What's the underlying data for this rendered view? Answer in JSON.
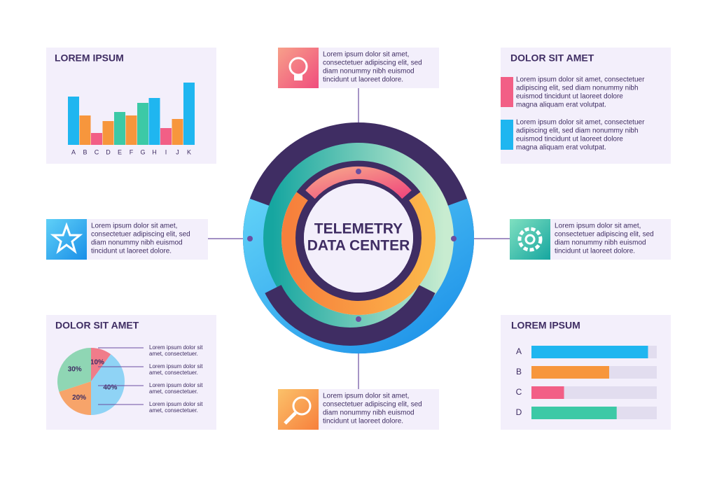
{
  "center_title": [
    "TELEMETRY",
    "DATA CENTER"
  ],
  "callouts": [
    {
      "lines": [
        "Lorem ipsum dolor sit amet,",
        "consectetuer adipiscing elit, sed",
        "diam nonummy nibh euismod",
        "tincidunt ut laoreet dolore."
      ]
    },
    {
      "lines": [
        "Lorem ipsum dolor sit amet,",
        "consectetuer adipiscing elit, sed",
        "diam nonummy nibh euismod",
        "tincidunt ut laoreet dolore."
      ]
    },
    {
      "lines": [
        "Lorem ipsum dolor sit amet,",
        "consectetuer adipiscing elit, sed",
        "diam nonummy nibh euismod",
        "tincidunt ut laoreet dolore."
      ]
    },
    {
      "lines": [
        "Lorem ipsum dolor sit amet,",
        "consectetuer adipiscing elit, sed",
        "diam nonummy nibh euismod",
        "tincidunt ut laoreet dolore."
      ]
    }
  ],
  "info_panel": {
    "title": "DOLOR SIT AMET",
    "items": [
      {
        "color": "#f25f86",
        "lines": [
          "Lorem ipsum dolor sit amet, consectetuer",
          "adipiscing elit, sed diam nonummy nibh",
          "euismod tincidunt ut laoreet dolore",
          "magna aliquam erat volutpat."
        ]
      },
      {
        "color": "#1fb6f0",
        "lines": [
          "Lorem ipsum dolor sit amet, consectetuer",
          "adipiscing elit, sed diam nonummy nibh",
          "euismod tincidunt ut laoreet dolore",
          "magna aliquam erat volutpat."
        ]
      }
    ]
  },
  "chart_data": [
    {
      "type": "bar",
      "title": "LOREM IPSUM",
      "categories": [
        "A",
        "B",
        "C",
        "D",
        "E",
        "F",
        "G",
        "H",
        "I",
        "J",
        "K"
      ],
      "values": [
        69,
        42,
        17,
        34,
        47,
        42,
        60,
        67,
        24,
        37,
        89
      ],
      "colors": [
        "#1fb6f0",
        "#f7963c",
        "#f25f86",
        "#f7963c",
        "#3cc9a6",
        "#f7963c",
        "#3cc9a6",
        "#1fb6f0",
        "#f25f86",
        "#f7963c",
        "#1fb6f0"
      ],
      "ylim": [
        0,
        100
      ]
    },
    {
      "type": "pie",
      "title": "DOLOR SIT AMET",
      "values": [
        10,
        40,
        20,
        30
      ],
      "value_labels": [
        "10%",
        "40%",
        "20%",
        "30%"
      ],
      "colors": [
        "#f07c8a",
        "#8fd3f5",
        "#f7a46a",
        "#8fd6b4"
      ],
      "notes": [
        [
          "Lorem ipsum dolor sit",
          "amet, consectetuer."
        ],
        [
          "Lorem ipsum dolor sit",
          "amet, consectetuer."
        ],
        [
          "Lorem ipsum dolor sit",
          "amet, consectetuer."
        ],
        [
          "Lorem ipsum dolor sit",
          "amet, consectetuer."
        ]
      ]
    },
    {
      "type": "hbar",
      "title": "LOREM IPSUM",
      "categories": [
        "A",
        "B",
        "C",
        "D"
      ],
      "values": [
        93,
        62,
        26,
        68
      ],
      "colors": [
        "#1fb6f0",
        "#f7963c",
        "#f25f86",
        "#3cc9a6"
      ],
      "xlim": [
        0,
        100
      ]
    }
  ]
}
